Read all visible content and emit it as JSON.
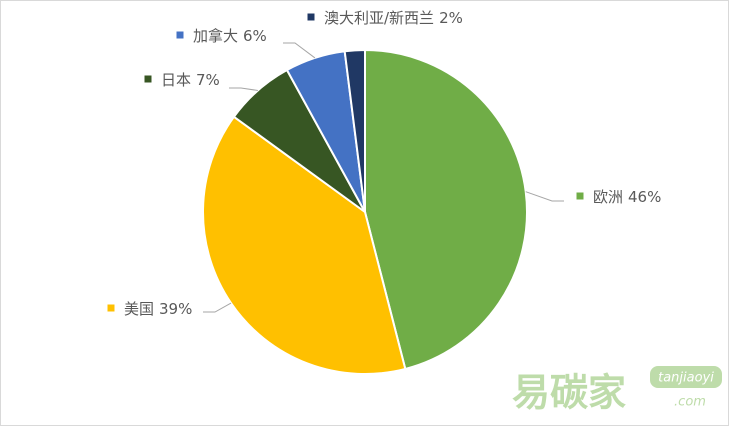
{
  "chart_data": {
    "type": "pie",
    "categories": [
      "欧洲",
      "美国",
      "日本",
      "加拿大",
      "澳大利亚/新西兰"
    ],
    "values": [
      46,
      39,
      7,
      6,
      2
    ],
    "value_labels": [
      "46%",
      "39%",
      "7%",
      "6%",
      "2%"
    ],
    "colors": [
      "#70ad47",
      "#ffc000",
      "#375623",
      "#4472c4",
      "#203864"
    ]
  },
  "watermark": {
    "brand": "易碳家",
    "site": "tanjiaoyi",
    "domain": ".com"
  }
}
